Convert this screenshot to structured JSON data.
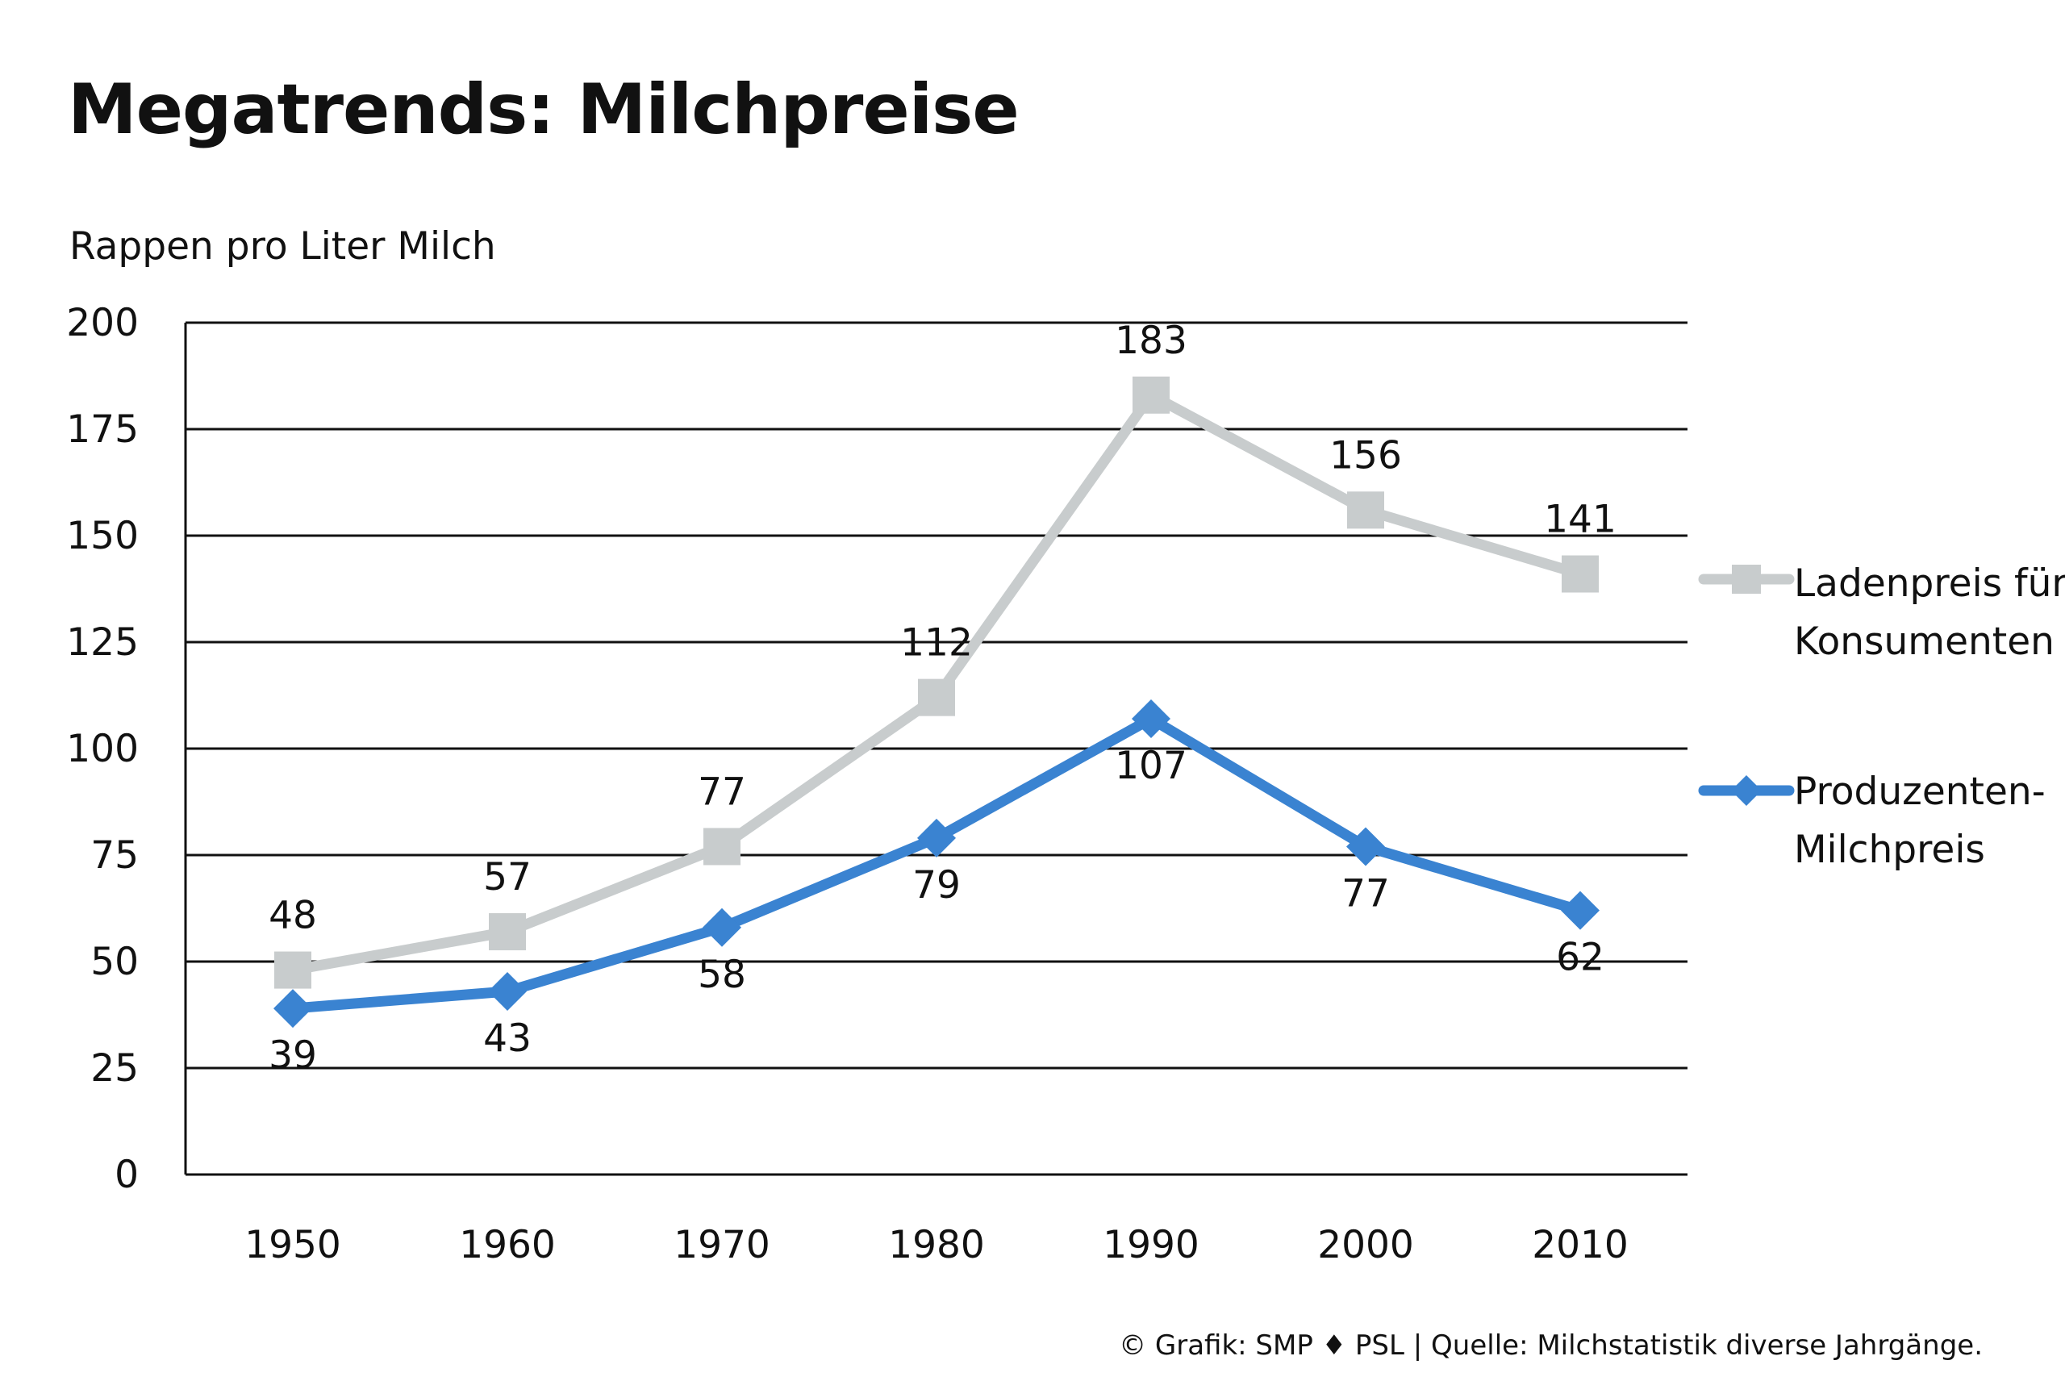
{
  "chart_data": {
    "type": "line",
    "title": "Megatrends: Milchpreise",
    "ylabel": "Rappen pro Liter Milch",
    "x": [
      "1950",
      "1960",
      "1970",
      "1980",
      "1990",
      "2000",
      "2010"
    ],
    "ylim": [
      0,
      200
    ],
    "yticks": [
      0,
      25,
      50,
      75,
      100,
      125,
      150,
      175,
      200
    ],
    "grid": true,
    "legend_position": "right",
    "series": [
      {
        "name": "Ladenpreis für Konsumenten",
        "legend_lines": [
          "Ladenpreis für",
          "Konsumenten"
        ],
        "values": [
          48,
          57,
          77,
          112,
          183,
          156,
          141
        ],
        "color": "#c8cccd",
        "marker": "square",
        "label_placement": "above"
      },
      {
        "name": "Produzenten-Milchpreis",
        "legend_lines": [
          "Produzenten-",
          "Milchpreis"
        ],
        "values": [
          39,
          43,
          58,
          79,
          107,
          77,
          62
        ],
        "color": "#3a83d1",
        "marker": "diamond",
        "label_placement": "below"
      }
    ]
  },
  "source_text": "© Grafik: SMP ♦ PSL | Quelle: Milchstatistik diverse Jahrgänge."
}
